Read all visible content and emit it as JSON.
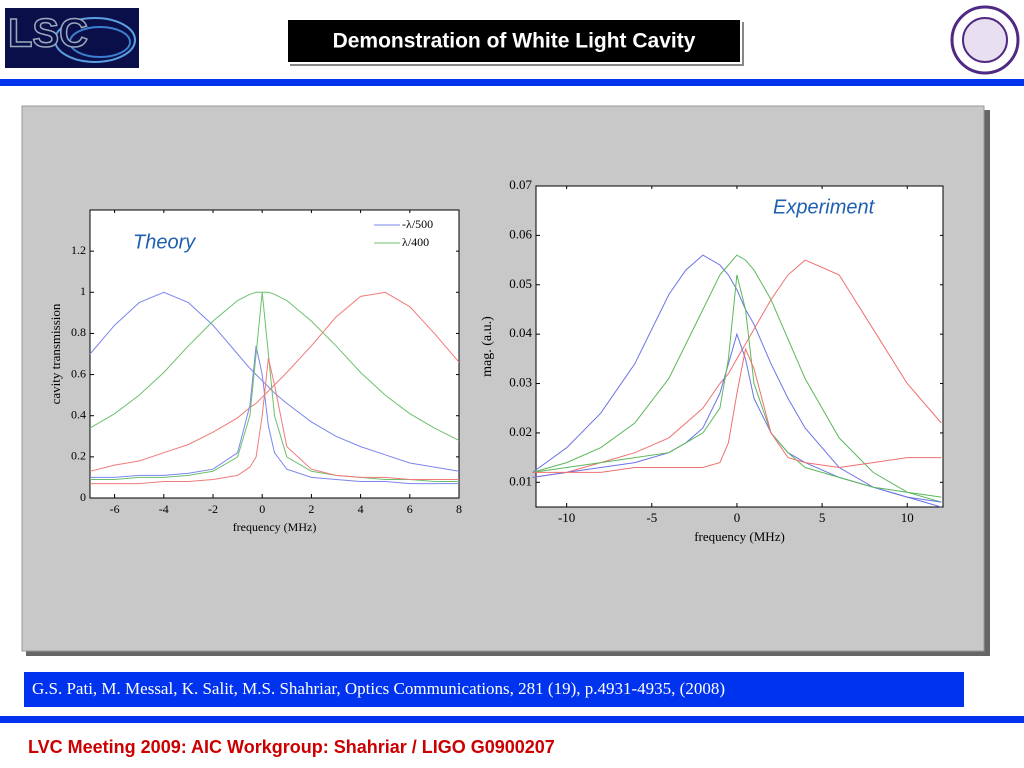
{
  "header": {
    "logo_text": "LSC",
    "title": "Demonstration of White Light Cavity"
  },
  "citation": "G.S. Pati, M. Messal, K. Salit, M.S. Shahriar, Optics Communications, 281 (19), p.4931-4935, (2008)",
  "footer": "LVC  Meeting 2009:  AIC Workgroup:  Shahriar / LIGO G0900207",
  "chart_data": [
    {
      "type": "line",
      "annotation": "Theory",
      "xlabel": "frequency (MHz)",
      "ylabel": "cavity transmission",
      "x": [
        -7,
        -6,
        -5,
        -4,
        -3,
        -2,
        -1,
        -0.5,
        -0.25,
        0,
        0.25,
        0.5,
        1,
        2,
        3,
        4,
        5,
        6,
        7,
        8
      ],
      "xlim": [
        -7,
        8
      ],
      "xticks": [
        -6,
        -4,
        -2,
        0,
        2,
        4,
        6,
        8
      ],
      "ylim": [
        0,
        1.4
      ],
      "yticks": [
        0,
        0.2,
        0.4,
        0.6,
        0.8,
        1,
        1.2
      ],
      "legend": "upper right",
      "series": [
        {
          "color": "#7b86ee",
          "values": [
            0.7,
            0.84,
            0.95,
            1,
            0.95,
            0.84,
            0.7,
            0.63,
            0.6,
            0.57,
            0.54,
            0.51,
            0.46,
            0.37,
            0.3,
            0.25,
            0.21,
            0.17,
            0.15,
            0.13
          ]
        },
        {
          "color": "#6cc06c",
          "values": [
            0.34,
            0.41,
            0.5,
            0.61,
            0.74,
            0.86,
            0.96,
            0.99,
            1,
            1,
            1,
            0.99,
            0.96,
            0.86,
            0.74,
            0.61,
            0.5,
            0.41,
            0.34,
            0.28
          ]
        },
        {
          "color": "#f07a7a",
          "values": [
            0.13,
            0.16,
            0.18,
            0.22,
            0.26,
            0.32,
            0.39,
            0.44,
            0.46,
            0.49,
            0.52,
            0.55,
            0.61,
            0.74,
            0.88,
            0.98,
            1,
            0.93,
            0.8,
            0.66
          ]
        },
        {
          "name": "-λ/500",
          "color": "#7b86ee",
          "values": [
            0.1,
            0.1,
            0.11,
            0.11,
            0.12,
            0.14,
            0.22,
            0.45,
            0.74,
            0.6,
            0.35,
            0.22,
            0.14,
            0.1,
            0.09,
            0.08,
            0.08,
            0.07,
            0.07,
            0.07
          ]
        },
        {
          "name": "λ/400",
          "color": "#6cc06c",
          "values": [
            0.09,
            0.09,
            0.1,
            0.1,
            0.11,
            0.13,
            0.2,
            0.4,
            0.7,
            1,
            0.7,
            0.4,
            0.2,
            0.13,
            0.11,
            0.1,
            0.09,
            0.09,
            0.08,
            0.08
          ]
        },
        {
          "color": "#f07a7a",
          "values": [
            0.07,
            0.07,
            0.07,
            0.08,
            0.08,
            0.09,
            0.11,
            0.15,
            0.2,
            0.4,
            0.68,
            0.55,
            0.25,
            0.14,
            0.11,
            0.1,
            0.1,
            0.09,
            0.09,
            0.09
          ]
        }
      ]
    },
    {
      "type": "line",
      "annotation": "Experiment",
      "xlabel": "frequency (MHz)",
      "ylabel": "mag. (a.u.)",
      "x": [
        -12,
        -10,
        -8,
        -6,
        -4,
        -3,
        -2,
        -1,
        -0.5,
        0,
        0.5,
        1,
        2,
        3,
        4,
        6,
        8,
        10,
        12
      ],
      "xlim": [
        -11.8,
        12.1
      ],
      "xticks": [
        -10,
        -5,
        0,
        5,
        10
      ],
      "ylim": [
        0.005,
        0.07
      ],
      "yticks": [
        0.01,
        0.02,
        0.03,
        0.04,
        0.05,
        0.06,
        0.07
      ],
      "series": [
        {
          "color": "#6b74e6",
          "values": [
            0.012,
            0.017,
            0.024,
            0.034,
            0.048,
            0.053,
            0.056,
            0.054,
            0.052,
            0.049,
            0.045,
            0.042,
            0.034,
            0.027,
            0.021,
            0.013,
            0.009,
            0.007,
            0.005
          ]
        },
        {
          "color": "#5cb85c",
          "values": [
            0.012,
            0.014,
            0.017,
            0.022,
            0.031,
            0.038,
            0.045,
            0.052,
            0.054,
            0.056,
            0.055,
            0.053,
            0.047,
            0.039,
            0.031,
            0.019,
            0.012,
            0.008,
            0.006
          ]
        },
        {
          "color": "#ee7070",
          "values": [
            0.011,
            0.012,
            0.014,
            0.016,
            0.019,
            0.022,
            0.025,
            0.03,
            0.032,
            0.035,
            0.038,
            0.041,
            0.047,
            0.052,
            0.055,
            0.052,
            0.041,
            0.03,
            0.022
          ]
        },
        {
          "color": "#6b74e6",
          "values": [
            0.011,
            0.012,
            0.013,
            0.014,
            0.016,
            0.018,
            0.021,
            0.028,
            0.034,
            0.04,
            0.035,
            0.027,
            0.02,
            0.016,
            0.014,
            0.011,
            0.009,
            0.007,
            0.006
          ]
        },
        {
          "color": "#5cb85c",
          "values": [
            0.012,
            0.013,
            0.014,
            0.015,
            0.016,
            0.018,
            0.02,
            0.025,
            0.035,
            0.052,
            0.045,
            0.03,
            0.02,
            0.016,
            0.013,
            0.011,
            0.009,
            0.008,
            0.007
          ]
        },
        {
          "color": "#ee7070",
          "values": [
            0.012,
            0.012,
            0.012,
            0.013,
            0.013,
            0.013,
            0.013,
            0.014,
            0.018,
            0.028,
            0.037,
            0.033,
            0.02,
            0.015,
            0.014,
            0.013,
            0.014,
            0.015,
            0.015
          ]
        }
      ]
    }
  ]
}
